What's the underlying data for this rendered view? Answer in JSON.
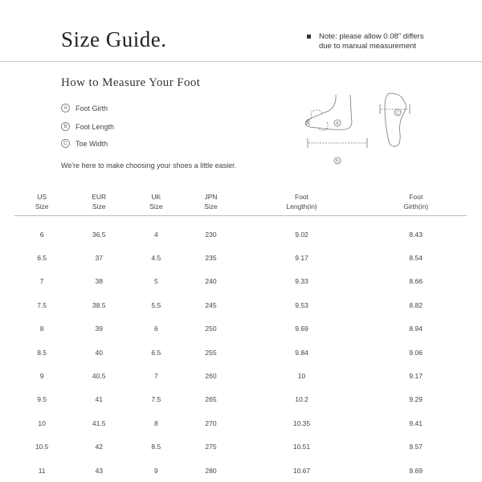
{
  "header": {
    "title": "Size Guide.",
    "note_line1": "Note: please allow 0.08\" differs",
    "note_line2": "due to manual measurement"
  },
  "measure": {
    "title": "How to Measure Your Foot",
    "items": [
      {
        "mark": "A",
        "label": "Foot Girth"
      },
      {
        "mark": "B",
        "label": "Foot Length"
      },
      {
        "mark": "C",
        "label": "Toe Width"
      }
    ],
    "tagline": "We're here to make choosing your shoes a little easier."
  },
  "table": {
    "headers": [
      [
        "US",
        "Size"
      ],
      [
        "EUR",
        "Size"
      ],
      [
        "UK",
        "Size"
      ],
      [
        "JPN",
        "Size"
      ],
      [
        "Foot",
        "Length(in)"
      ],
      [
        "Foot",
        "Girth(in)"
      ]
    ],
    "rows": [
      [
        "6",
        "36.5",
        "4",
        "230",
        "9.02",
        "8.43"
      ],
      [
        "6.5",
        "37",
        "4.5",
        "235",
        "9.17",
        "8.54"
      ],
      [
        "7",
        "38",
        "5",
        "240",
        "9.33",
        "8.66"
      ],
      [
        "7.5",
        "38.5",
        "5.5",
        "245",
        "9.53",
        "8.82"
      ],
      [
        "8",
        "39",
        "6",
        "250",
        "9.69",
        "8.94"
      ],
      [
        "8.5",
        "40",
        "6.5",
        "255",
        "9.84",
        "9.06"
      ],
      [
        "9",
        "40.5",
        "7",
        "260",
        "10",
        "9.17"
      ],
      [
        "9.5",
        "41",
        "7.5",
        "265",
        "10.2",
        "9.29"
      ],
      [
        "10",
        "41.5",
        "8",
        "270",
        "10.35",
        "9.41"
      ],
      [
        "10.5",
        "42",
        "8.5",
        "275",
        "10.51",
        "9.57"
      ],
      [
        "11",
        "43",
        "9",
        "280",
        "10.67",
        "9.69"
      ]
    ]
  }
}
